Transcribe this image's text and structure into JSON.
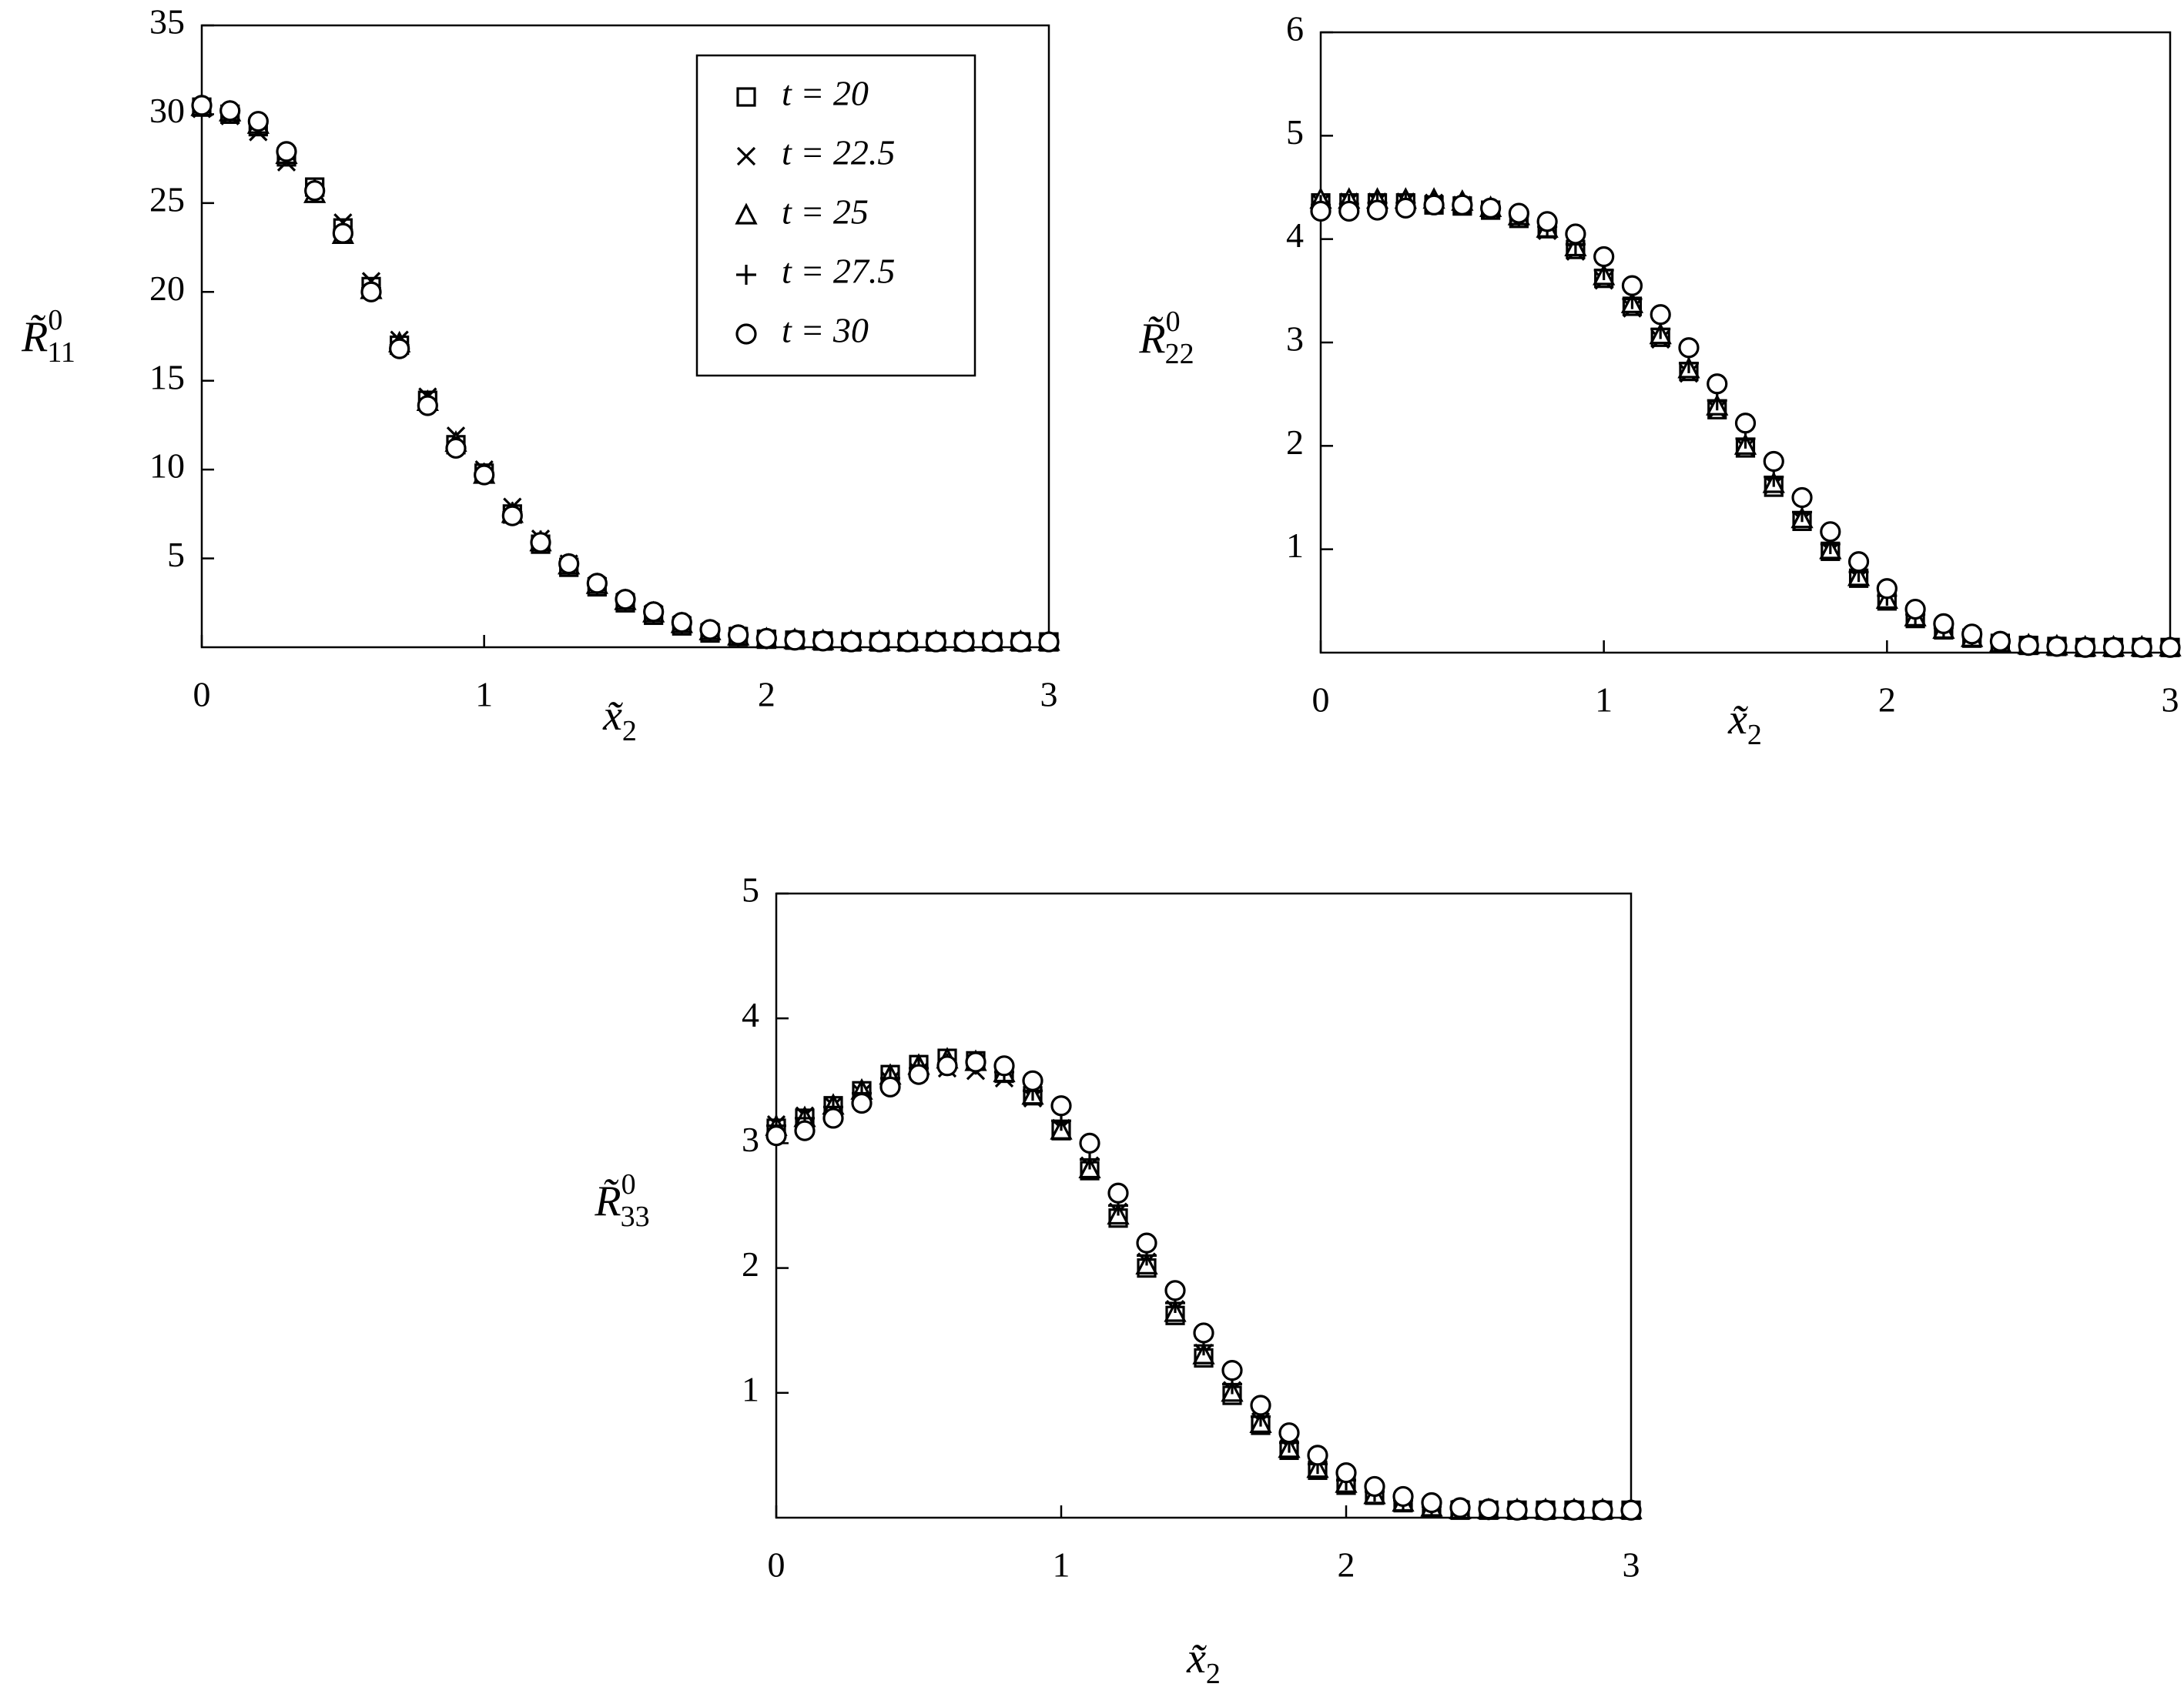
{
  "chart_data": [
    {
      "type": "scatter",
      "xlim": [
        0,
        3
      ],
      "ylim": [
        0,
        35
      ],
      "xticks": [
        0,
        1,
        2,
        3
      ],
      "yticks": [
        5,
        10,
        15,
        20,
        25,
        30,
        35
      ],
      "grid": false,
      "legend": "upper right",
      "xlabel": {
        "base": "x̃",
        "sub": "2"
      },
      "ylabel": {
        "base": "R̃",
        "sup": "0",
        "sub": "11"
      },
      "x": [
        0,
        0.1,
        0.2,
        0.3,
        0.4,
        0.5,
        0.6,
        0.7,
        0.8,
        0.9,
        1,
        1.1,
        1.2,
        1.3,
        1.4,
        1.5,
        1.6,
        1.7,
        1.8,
        1.9,
        2,
        2.1,
        2.2,
        2.3,
        2.4,
        2.5,
        2.6,
        2.7,
        2.8,
        2.9,
        3
      ],
      "series": [
        {
          "name": "t = 20",
          "marker": "square",
          "color": "#000000",
          "values": [
            30.4,
            30.0,
            29.3,
            27.6,
            25.9,
            23.6,
            20.3,
            17.0,
            13.9,
            11.4,
            9.8,
            7.5,
            5.8,
            4.5,
            3.4,
            2.5,
            1.8,
            1.2,
            0.8,
            0.6,
            0.45,
            0.4,
            0.35,
            0.3,
            0.3,
            0.3,
            0.3,
            0.3,
            0.3,
            0.3,
            0.3
          ]
        },
        {
          "name": "t = 22.5",
          "marker": "cross",
          "color": "#000000",
          "values": [
            30.3,
            29.9,
            29.0,
            27.3,
            25.6,
            23.9,
            20.6,
            17.3,
            14.1,
            11.9,
            10.0,
            7.9,
            6.1,
            4.7,
            3.5,
            2.6,
            1.9,
            1.3,
            0.9,
            0.65,
            0.5,
            0.4,
            0.35,
            0.3,
            0.3,
            0.3,
            0.3,
            0.3,
            0.3,
            0.3,
            0.3
          ]
        },
        {
          "name": "t = 25",
          "marker": "triangle",
          "color": "#000000",
          "values": [
            30.4,
            30.1,
            29.4,
            27.7,
            25.5,
            23.2,
            20.1,
            17.1,
            13.8,
            11.5,
            9.7,
            7.5,
            5.9,
            4.6,
            3.5,
            2.6,
            1.9,
            1.3,
            0.9,
            0.6,
            0.45,
            0.4,
            0.35,
            0.3,
            0.3,
            0.3,
            0.3,
            0.3,
            0.3,
            0.3,
            0.3
          ]
        },
        {
          "name": "t = 27.5",
          "marker": "plus",
          "color": "#000000",
          "values": [
            30.5,
            30.1,
            29.5,
            27.8,
            25.8,
            23.5,
            20.2,
            17.0,
            13.7,
            11.3,
            9.8,
            7.6,
            6.0,
            4.6,
            3.5,
            2.6,
            1.9,
            1.3,
            0.9,
            0.6,
            0.45,
            0.4,
            0.35,
            0.3,
            0.3,
            0.3,
            0.3,
            0.3,
            0.3,
            0.3,
            0.3
          ]
        },
        {
          "name": "t = 30",
          "marker": "circle",
          "color": "#000000",
          "values": [
            30.5,
            30.2,
            29.6,
            27.9,
            25.7,
            23.3,
            20.0,
            16.8,
            13.6,
            11.2,
            9.7,
            7.4,
            5.9,
            4.7,
            3.6,
            2.7,
            2.0,
            1.4,
            1.0,
            0.7,
            0.5,
            0.4,
            0.35,
            0.3,
            0.3,
            0.3,
            0.3,
            0.3,
            0.3,
            0.3,
            0.3
          ]
        }
      ]
    },
    {
      "type": "scatter",
      "xlim": [
        0,
        3
      ],
      "ylim": [
        0,
        6
      ],
      "xticks": [
        0,
        1,
        2,
        3
      ],
      "yticks": [
        1,
        2,
        3,
        4,
        5,
        6
      ],
      "grid": false,
      "xlabel": {
        "base": "x̃",
        "sub": "2"
      },
      "ylabel": {
        "base": "R̃",
        "sup": "0",
        "sub": "22"
      },
      "x": [
        0,
        0.1,
        0.2,
        0.3,
        0.4,
        0.5,
        0.6,
        0.7,
        0.8,
        0.9,
        1,
        1.1,
        1.2,
        1.3,
        1.4,
        1.5,
        1.6,
        1.7,
        1.8,
        1.9,
        2,
        2.1,
        2.2,
        2.3,
        2.4,
        2.5,
        2.6,
        2.7,
        2.8,
        2.9,
        3
      ],
      "series": [
        {
          "marker": "square",
          "color": "#000000",
          "values": [
            4.35,
            4.35,
            4.35,
            4.35,
            4.33,
            4.32,
            4.28,
            4.2,
            4.1,
            3.9,
            3.62,
            3.35,
            3.05,
            2.72,
            2.35,
            1.98,
            1.6,
            1.27,
            0.98,
            0.72,
            0.5,
            0.33,
            0.22,
            0.14,
            0.09,
            0.07,
            0.06,
            0.05,
            0.05,
            0.05,
            0.05
          ]
        },
        {
          "marker": "cross",
          "color": "#000000",
          "values": [
            4.35,
            4.36,
            4.36,
            4.36,
            4.35,
            4.33,
            4.28,
            4.2,
            4.08,
            3.88,
            3.6,
            3.33,
            3.03,
            2.7,
            2.35,
            1.98,
            1.62,
            1.28,
            0.98,
            0.72,
            0.5,
            0.34,
            0.22,
            0.14,
            0.09,
            0.07,
            0.06,
            0.05,
            0.05,
            0.05,
            0.05
          ]
        },
        {
          "marker": "triangle",
          "color": "#000000",
          "values": [
            4.38,
            4.38,
            4.38,
            4.38,
            4.38,
            4.36,
            4.3,
            4.22,
            4.1,
            3.92,
            3.64,
            3.37,
            3.07,
            2.74,
            2.38,
            2.0,
            1.63,
            1.29,
            0.99,
            0.73,
            0.51,
            0.34,
            0.22,
            0.14,
            0.09,
            0.07,
            0.06,
            0.05,
            0.05,
            0.05,
            0.05
          ]
        },
        {
          "marker": "plus",
          "color": "#000000",
          "values": [
            4.33,
            4.34,
            4.35,
            4.35,
            4.35,
            4.33,
            4.29,
            4.22,
            4.12,
            3.95,
            3.7,
            3.42,
            3.13,
            2.8,
            2.44,
            2.07,
            1.7,
            1.36,
            1.05,
            0.78,
            0.55,
            0.37,
            0.24,
            0.15,
            0.1,
            0.07,
            0.06,
            0.05,
            0.05,
            0.05,
            0.05
          ]
        },
        {
          "marker": "circle",
          "color": "#000000",
          "values": [
            4.27,
            4.27,
            4.28,
            4.3,
            4.33,
            4.33,
            4.3,
            4.25,
            4.17,
            4.05,
            3.83,
            3.55,
            3.27,
            2.95,
            2.6,
            2.22,
            1.85,
            1.5,
            1.17,
            0.88,
            0.62,
            0.42,
            0.28,
            0.18,
            0.11,
            0.07,
            0.06,
            0.05,
            0.05,
            0.05,
            0.05
          ]
        }
      ]
    },
    {
      "type": "scatter",
      "xlim": [
        0,
        3
      ],
      "ylim": [
        0,
        5
      ],
      "xticks": [
        0,
        1,
        2,
        3
      ],
      "yticks": [
        1,
        2,
        3,
        4,
        5
      ],
      "grid": false,
      "xlabel": {
        "base": "x̃",
        "sub": "2"
      },
      "ylabel": {
        "base": "R̃",
        "sup": "0",
        "sub": "33"
      },
      "x": [
        0,
        0.1,
        0.2,
        0.3,
        0.4,
        0.5,
        0.6,
        0.7,
        0.8,
        0.9,
        1,
        1.1,
        1.2,
        1.3,
        1.4,
        1.5,
        1.6,
        1.7,
        1.8,
        1.9,
        2,
        2.1,
        2.2,
        2.3,
        2.4,
        2.5,
        2.6,
        2.7,
        2.8,
        2.9,
        3
      ],
      "series": [
        {
          "marker": "square",
          "color": "#000000",
          "values": [
            3.12,
            3.2,
            3.3,
            3.42,
            3.55,
            3.63,
            3.68,
            3.66,
            3.56,
            3.38,
            3.1,
            2.78,
            2.4,
            2.0,
            1.62,
            1.28,
            0.98,
            0.74,
            0.54,
            0.38,
            0.26,
            0.18,
            0.12,
            0.08,
            0.06,
            0.06,
            0.06,
            0.06,
            0.06,
            0.06,
            0.06
          ]
        },
        {
          "marker": "cross",
          "color": "#000000",
          "values": [
            3.15,
            3.22,
            3.3,
            3.4,
            3.5,
            3.57,
            3.6,
            3.58,
            3.52,
            3.36,
            3.12,
            2.82,
            2.45,
            2.05,
            1.67,
            1.32,
            1.02,
            0.77,
            0.56,
            0.4,
            0.28,
            0.19,
            0.13,
            0.09,
            0.07,
            0.06,
            0.06,
            0.06,
            0.06,
            0.06,
            0.06
          ]
        },
        {
          "marker": "triangle",
          "color": "#000000",
          "values": [
            3.13,
            3.2,
            3.3,
            3.42,
            3.54,
            3.62,
            3.67,
            3.65,
            3.56,
            3.38,
            3.1,
            2.79,
            2.42,
            2.02,
            1.64,
            1.3,
            1.0,
            0.75,
            0.55,
            0.39,
            0.27,
            0.18,
            0.12,
            0.08,
            0.06,
            0.06,
            0.06,
            0.06,
            0.06,
            0.06,
            0.06
          ]
        },
        {
          "marker": "plus",
          "color": "#000000",
          "values": [
            3.14,
            3.2,
            3.29,
            3.4,
            3.52,
            3.6,
            3.64,
            3.63,
            3.57,
            3.42,
            3.18,
            2.87,
            2.5,
            2.1,
            1.72,
            1.38,
            1.07,
            0.81,
            0.6,
            0.43,
            0.3,
            0.21,
            0.14,
            0.09,
            0.07,
            0.06,
            0.06,
            0.06,
            0.06,
            0.06,
            0.06
          ]
        },
        {
          "marker": "circle",
          "color": "#000000",
          "values": [
            3.06,
            3.1,
            3.2,
            3.32,
            3.45,
            3.55,
            3.62,
            3.65,
            3.62,
            3.5,
            3.3,
            3.0,
            2.6,
            2.2,
            1.82,
            1.48,
            1.18,
            0.9,
            0.68,
            0.5,
            0.36,
            0.25,
            0.17,
            0.12,
            0.08,
            0.07,
            0.06,
            0.06,
            0.06,
            0.06,
            0.06
          ]
        }
      ]
    }
  ]
}
